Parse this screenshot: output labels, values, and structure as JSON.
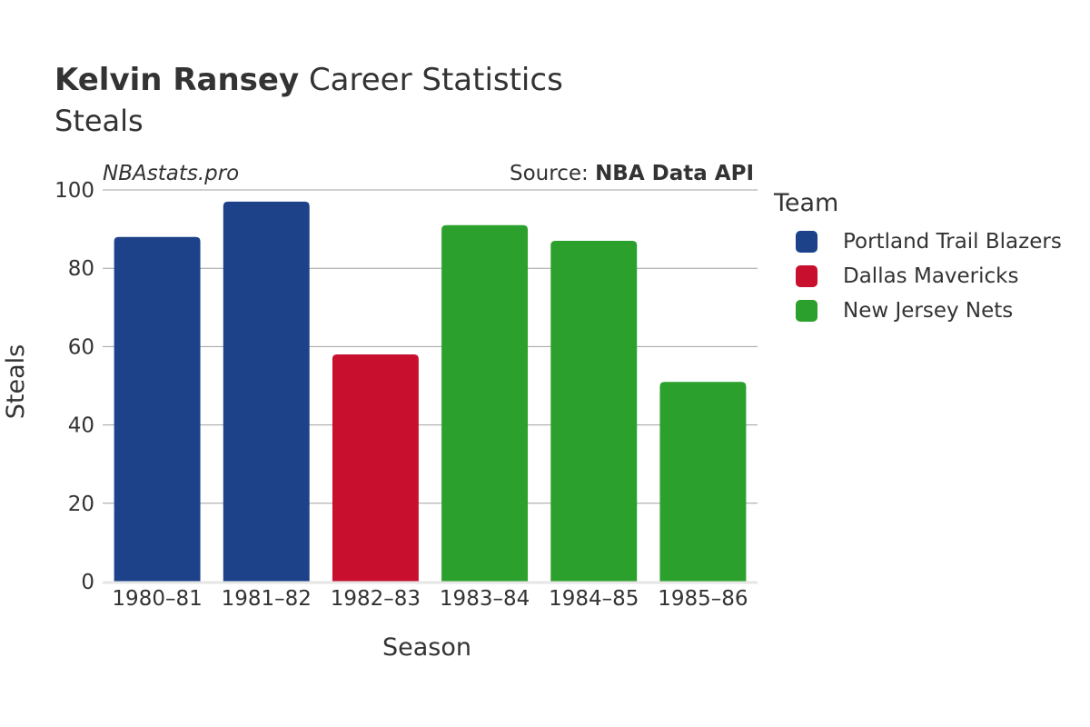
{
  "header": {
    "player_name": "Kelvin Ransey",
    "title_rest": "Career Statistics",
    "subtitle": "Steals",
    "brand": "NBAstats.pro",
    "source_prefix": "Source: ",
    "source_name": "NBA Data API"
  },
  "legend": {
    "title": "Team",
    "items": [
      {
        "label": "Portland Trail Blazers",
        "color": "#1d428a"
      },
      {
        "label": "Dallas Mavericks",
        "color": "#c8102e"
      },
      {
        "label": "New Jersey Nets",
        "color": "#2ca02c"
      }
    ]
  },
  "chart_data": {
    "type": "bar",
    "title": "Kelvin Ransey Career Statistics",
    "subtitle": "Steals",
    "xlabel": "Season",
    "ylabel": "Steals",
    "ylim": [
      0,
      100
    ],
    "yticks": [
      0,
      20,
      40,
      60,
      80,
      100
    ],
    "grid": true,
    "legend_position": "right",
    "categories": [
      "1980–81",
      "1981–82",
      "1982–83",
      "1983–84",
      "1984–85",
      "1985–86"
    ],
    "values": [
      88,
      97,
      58,
      91,
      87,
      51
    ],
    "teams": [
      "Portland Trail Blazers",
      "Portland Trail Blazers",
      "Dallas Mavericks",
      "New Jersey Nets",
      "New Jersey Nets",
      "New Jersey Nets"
    ],
    "team_colors": {
      "Portland Trail Blazers": "#1d428a",
      "Dallas Mavericks": "#c8102e",
      "New Jersey Nets": "#2ca02c"
    }
  }
}
